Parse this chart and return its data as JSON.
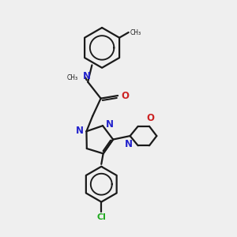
{
  "background_color": "#efefef",
  "bond_color": "#1a1a1a",
  "nitrogen_color": "#2222cc",
  "oxygen_color": "#cc2222",
  "chlorine_color": "#22aa22",
  "line_width": 1.6,
  "figsize": [
    3.0,
    3.0
  ],
  "dpi": 100,
  "xlim": [
    0,
    10
  ],
  "ylim": [
    0,
    10
  ]
}
